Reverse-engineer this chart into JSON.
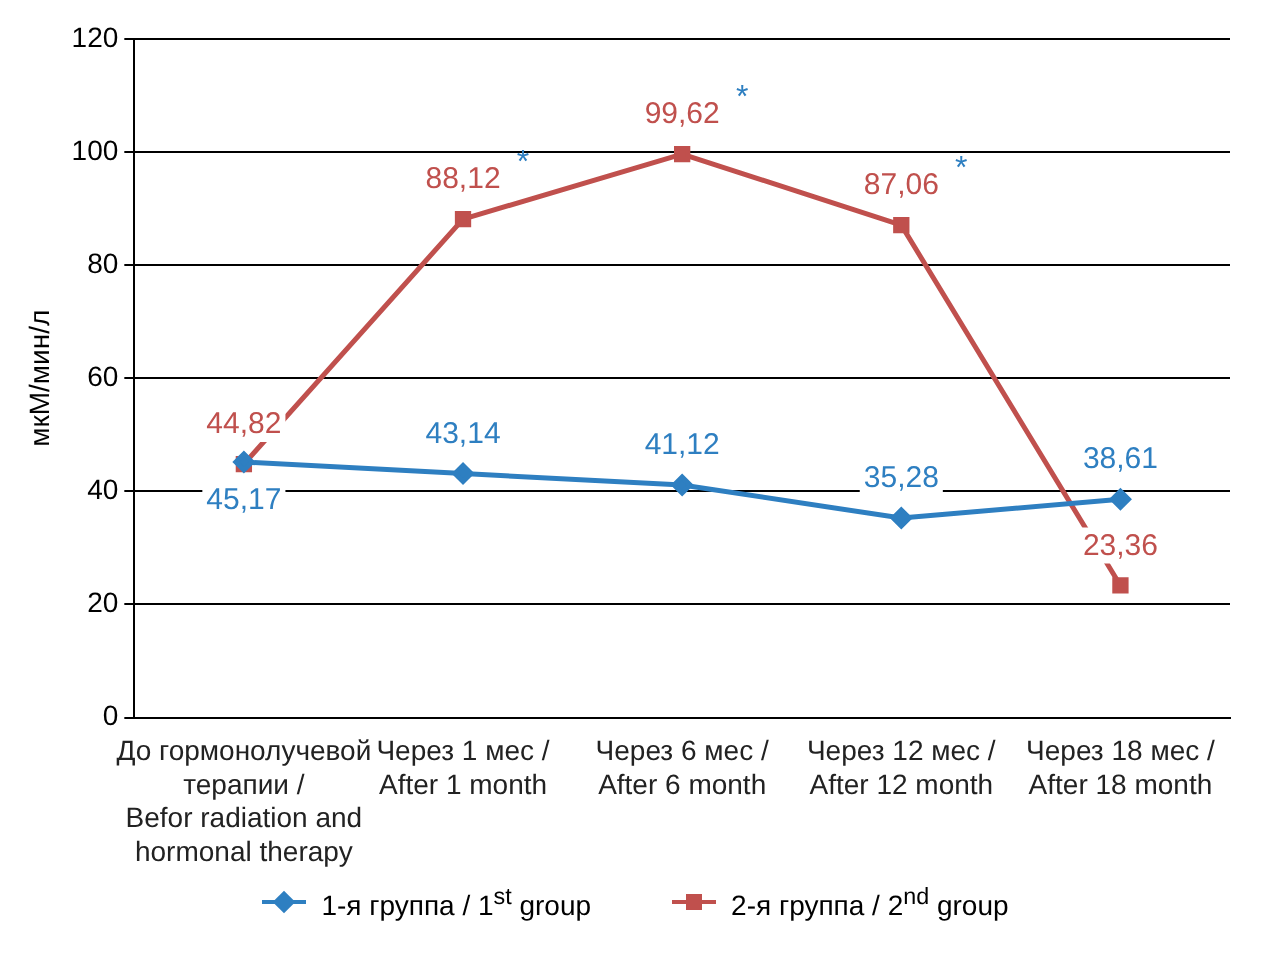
{
  "chart_data": {
    "type": "line",
    "ylabel": "мкМ/мин/л",
    "categories": [
      "До гормонолучевой терапии / Befor radiation and hormonal therapy",
      "Через 1 мес / After 1 month",
      "Через 6 мес / After 6 month",
      "Через 12 мес / After 12 month",
      "Через 18 мес / After 18 month"
    ],
    "series": [
      {
        "name": "1-я группа / 1$^{st}$ group",
        "color": "#2e7fc1",
        "marker": "diamond",
        "values": [
          45.17,
          43.14,
          41.12,
          35.28,
          38.61
        ],
        "value_labels": [
          "45,17",
          "43,14",
          "41,12",
          "35,28",
          "38,61"
        ]
      },
      {
        "name": "2-я группа / 2$^{nd}$ group",
        "color": "#c0504d",
        "marker": "square",
        "values": [
          44.82,
          88.12,
          99.62,
          87.06,
          23.36
        ],
        "value_labels": [
          "44,82",
          "88,12",
          "99,62",
          "87,06",
          "23,36"
        ]
      }
    ],
    "annotations": [
      {
        "text": "*",
        "x": "Через 1 мес / After 1 month",
        "y": 88.12
      },
      {
        "text": "*",
        "x": "Через 6 мес / After 6 month",
        "y": 99.62
      },
      {
        "text": "*",
        "x": "Через 12 мес / After 12 month",
        "y": 87.06
      }
    ],
    "ylim": [
      0,
      120
    ],
    "yticks": [
      0,
      20,
      40,
      60,
      80,
      100,
      120
    ],
    "grid": "y",
    "legend": "bottom"
  }
}
